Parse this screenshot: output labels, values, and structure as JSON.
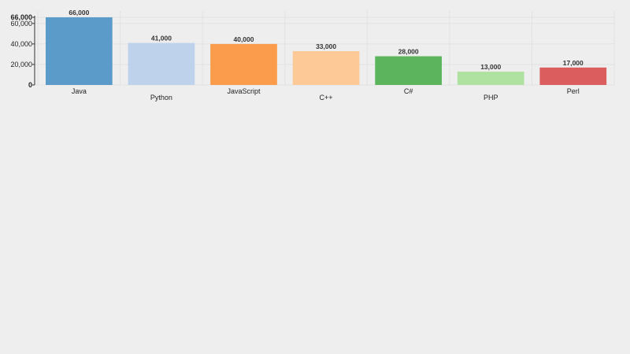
{
  "chart_data": {
    "type": "bar",
    "categories": [
      "Java",
      "Python",
      "JavaScript",
      "C++",
      "C#",
      "PHP",
      "Perl"
    ],
    "values": [
      66000,
      41000,
      40000,
      33000,
      28000,
      13000,
      17000
    ],
    "value_labels": [
      "66,000",
      "41,000",
      "40,000",
      "33,000",
      "28,000",
      "13,000",
      "17,000"
    ],
    "colors": [
      "#5b9bc9",
      "#bed2ec",
      "#fb9c4c",
      "#fdc996",
      "#5cb55c",
      "#afe1a0",
      "#dc5d5d"
    ],
    "y_ticks": [
      {
        "value": 0,
        "label": "0",
        "bold": true
      },
      {
        "value": 20000,
        "label": "20,000",
        "bold": false
      },
      {
        "value": 40000,
        "label": "40,000",
        "bold": false
      },
      {
        "value": 60000,
        "label": "60,000",
        "bold": false
      },
      {
        "value": 66000,
        "label": "66,000",
        "bold": true
      }
    ],
    "ylim": [
      0,
      66000
    ],
    "title": "",
    "xlabel": "",
    "ylabel": "",
    "grid": true,
    "legend": "none",
    "label_stagger": true
  }
}
